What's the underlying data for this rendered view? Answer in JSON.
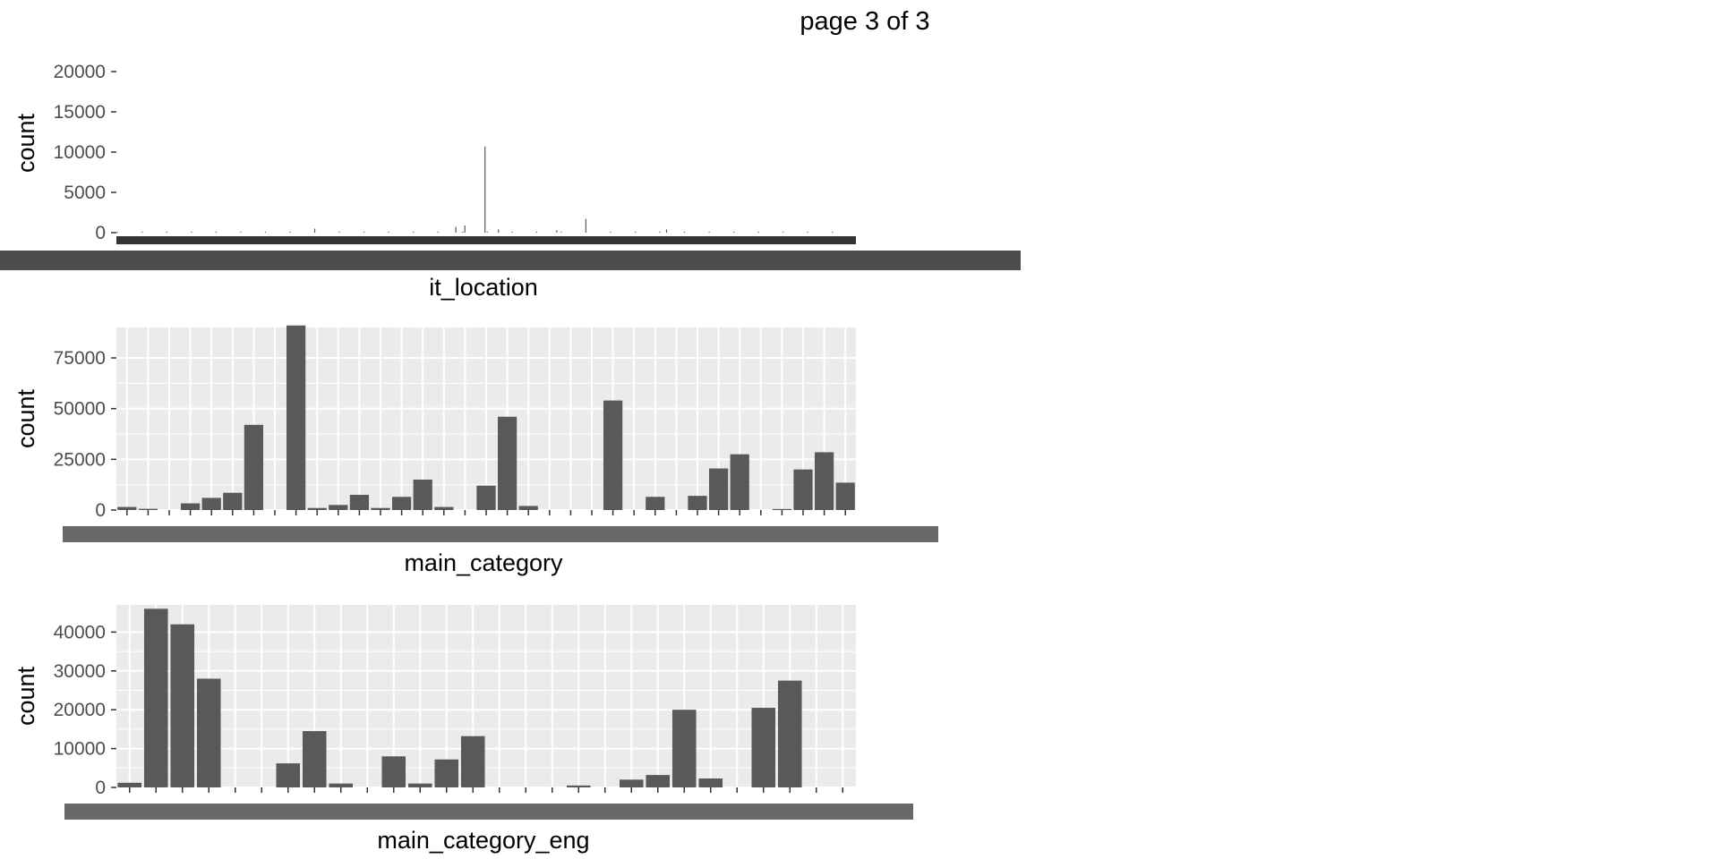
{
  "page_title": "page 3 of 3",
  "chart_data": [
    {
      "type": "bar",
      "xlabel": "it_location",
      "ylabel": "count",
      "ylim": [
        0,
        20000
      ],
      "yticks": [
        0,
        5000,
        10000,
        15000,
        20000
      ],
      "panel_background": false,
      "grid": false,
      "categories_label_overlap": true,
      "category_count": 330,
      "peaks": [
        {
          "index": 164,
          "value": 10700
        },
        {
          "index": 209,
          "value": 1700
        },
        {
          "index": 155,
          "value": 900
        },
        {
          "index": 151,
          "value": 700
        },
        {
          "index": 88,
          "value": 500
        },
        {
          "index": 170,
          "value": 400
        },
        {
          "index": 196,
          "value": 300
        },
        {
          "index": 245,
          "value": 400
        }
      ]
    },
    {
      "type": "bar",
      "xlabel": "main_category",
      "ylabel": "count",
      "ylim": [
        0,
        90000
      ],
      "yticks": [
        0,
        25000,
        50000,
        75000
      ],
      "panel_background": true,
      "grid": true,
      "values": [
        1500,
        600,
        0,
        3300,
        6000,
        8500,
        42000,
        0,
        91000,
        1000,
        2500,
        7500,
        1000,
        6500,
        15000,
        1500,
        0,
        12000,
        46000,
        2000,
        0,
        0,
        0,
        54000,
        0,
        6500,
        0,
        7000,
        20500,
        27500,
        0,
        500,
        20000,
        28500,
        13500
      ]
    },
    {
      "type": "bar",
      "xlabel": "main_category_eng",
      "ylabel": "count",
      "ylim": [
        0,
        47000
      ],
      "yticks": [
        0,
        10000,
        20000,
        30000,
        40000
      ],
      "panel_background": true,
      "grid": true,
      "values": [
        1200,
        46000,
        42000,
        28000,
        0,
        0,
        6200,
        14500,
        1000,
        0,
        8000,
        1000,
        7200,
        13200,
        0,
        0,
        0,
        500,
        0,
        2000,
        3200,
        20000,
        2300,
        0,
        20500,
        27500,
        0,
        0
      ]
    }
  ]
}
